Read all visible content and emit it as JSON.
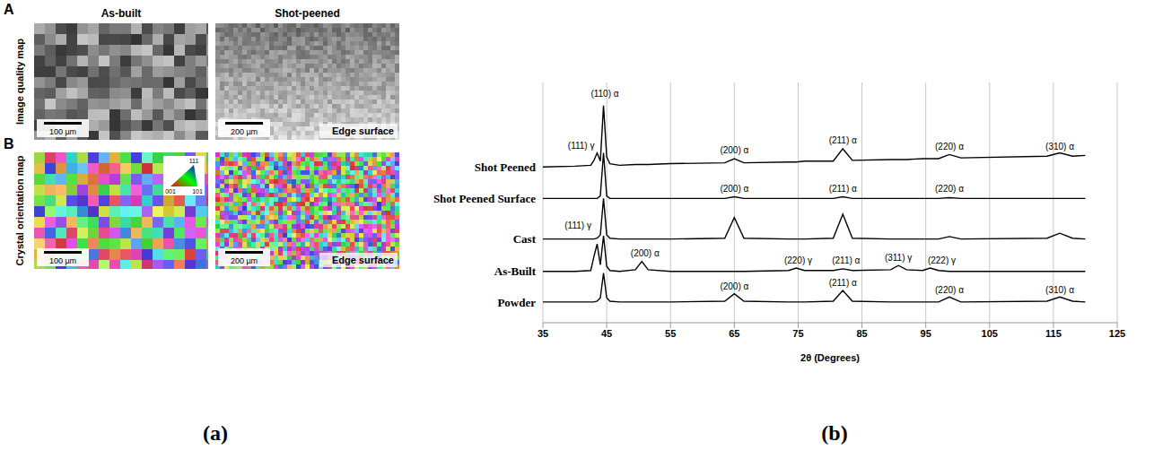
{
  "figure_a": {
    "panel_letters": [
      "A",
      "B"
    ],
    "columns": [
      "As-built",
      "Shot-peened"
    ],
    "rows": [
      "Image quality map",
      "Crystal orientation map"
    ],
    "scale_bars": [
      "100 µm",
      "200 µm"
    ],
    "edge_label": "Edge surface",
    "ipf_key": [
      "111",
      "001",
      "101"
    ]
  },
  "captions": [
    "(a)",
    "(b)"
  ],
  "chart_data": {
    "type": "line",
    "x_label": "2θ (Degrees)",
    "x": [
      35,
      40,
      42.5,
      43,
      43.5,
      44,
      44.5,
      45,
      45.5,
      47,
      49.5,
      50.5,
      51.5,
      55,
      63.5,
      65,
      66.5,
      73.5,
      74.7,
      76,
      80.5,
      82,
      83.5,
      89.5,
      90.7,
      92,
      94.5,
      95.7,
      97,
      98.7,
      100.5,
      114,
      116,
      118,
      120
    ],
    "series": [
      {
        "name": "Shot Peened",
        "color": "#000000",
        "values": [
          188,
          189,
          190,
          196,
          205,
          195,
          262,
          200,
          192,
          190,
          191,
          191,
          191,
          192,
          193,
          198,
          193,
          194,
          194,
          195,
          195,
          210,
          196,
          197,
          197,
          197,
          198,
          198,
          198,
          203,
          199,
          201,
          205,
          201,
          202
        ]
      },
      {
        "name": "Shot Peened Surface",
        "color": "#000000",
        "values": [
          150,
          150,
          150,
          150,
          150,
          153,
          205,
          153,
          150,
          150,
          150,
          150,
          150,
          150,
          150,
          152,
          150,
          150,
          150,
          150,
          150,
          152,
          150,
          150,
          150,
          150,
          150,
          150,
          150,
          151,
          150,
          150,
          150,
          150,
          150
        ]
      },
      {
        "name": "Cast",
        "color": "#000000",
        "values": [
          101,
          101,
          101,
          101,
          102,
          106,
          150,
          106,
          102,
          101,
          101,
          101,
          101,
          101,
          102,
          127,
          102,
          101,
          101,
          101,
          102,
          131,
          102,
          101,
          101,
          101,
          101,
          101,
          101,
          104,
          101,
          102,
          108,
          102,
          101
        ]
      },
      {
        "name": "As-Built",
        "color": "#000000",
        "values": [
          62,
          62,
          63,
          80,
          95,
          70,
          105,
          68,
          63,
          62,
          64,
          74,
          64,
          62,
          62,
          62,
          62,
          63,
          66,
          63,
          63,
          65,
          63,
          64,
          69,
          64,
          63,
          66,
          63,
          62,
          62,
          62,
          62,
          62,
          62
        ]
      },
      {
        "name": "Powder",
        "color": "#000000",
        "values": [
          25,
          25,
          25,
          25,
          26,
          30,
          60,
          30,
          26,
          25,
          25,
          25,
          25,
          25,
          26,
          35,
          26,
          25,
          25,
          25,
          26,
          39,
          26,
          25,
          25,
          25,
          25,
          25,
          25,
          31,
          25,
          26,
          31,
          26,
          25
        ]
      }
    ],
    "xlim": [
      35,
      125
    ],
    "xticks": [
      35,
      45,
      55,
      65,
      75,
      85,
      95,
      105,
      115,
      125
    ],
    "ylim": [
      0,
      290
    ],
    "grid": true,
    "tick_labels": "x",
    "annotations": [
      {
        "text": "(111) γ",
        "x": 41,
        "y": 214
      },
      {
        "text": "(110) α",
        "x": 44.7,
        "y": 277
      },
      {
        "text": "(200) α",
        "x": 65,
        "y": 208
      },
      {
        "text": "(211) α",
        "x": 82,
        "y": 220
      },
      {
        "text": "(220) α",
        "x": 98.7,
        "y": 213
      },
      {
        "text": "(310) α",
        "x": 116,
        "y": 213
      },
      {
        "text": "(200) α",
        "x": 65,
        "y": 162
      },
      {
        "text": "(211) α",
        "x": 82,
        "y": 162
      },
      {
        "text": "(220) α",
        "x": 98.7,
        "y": 162
      },
      {
        "text": "(111) γ",
        "x": 40.5,
        "y": 118
      },
      {
        "text": "(200) α",
        "x": 51,
        "y": 84
      },
      {
        "text": "(220) γ",
        "x": 75,
        "y": 75
      },
      {
        "text": "(211) α",
        "x": 82.5,
        "y": 75
      },
      {
        "text": "(311) γ",
        "x": 90.7,
        "y": 79
      },
      {
        "text": "(222) γ",
        "x": 97.5,
        "y": 75
      },
      {
        "text": "(200) α",
        "x": 65,
        "y": 44
      },
      {
        "text": "(211) α",
        "x": 82,
        "y": 48
      },
      {
        "text": "(220) α",
        "x": 98.7,
        "y": 40
      },
      {
        "text": "(310) α",
        "x": 116,
        "y": 40
      }
    ]
  }
}
